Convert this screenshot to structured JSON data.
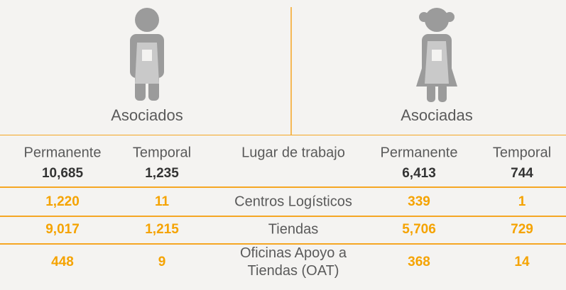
{
  "groups": [
    "Asociados",
    "Asociadas"
  ],
  "table": {
    "headers": [
      "Permanente",
      "Temporal",
      "Lugar de trabajo",
      "Permanente",
      "Temporal"
    ],
    "totals": [
      "10,685",
      "1,235",
      "6,413",
      "744"
    ],
    "rows": [
      [
        "1,220",
        "11",
        "Centros Logísticos",
        "339",
        "1"
      ],
      [
        "9,017",
        "1,215",
        "Tiendas",
        "5,706",
        "729"
      ],
      [
        "448",
        "9",
        "Oficinas Apoyo a Tiendas (OAT)",
        "368",
        "14"
      ]
    ]
  }
}
